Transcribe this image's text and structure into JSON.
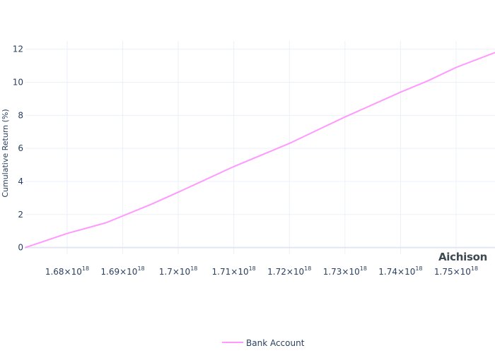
{
  "chart_data": {
    "type": "line",
    "title": "",
    "xlabel": "",
    "ylabel": "Cumulative Return (%)",
    "x_tick_values": [
      1.68e+18,
      1.69e+18,
      1.7e+18,
      1.71e+18,
      1.72e+18,
      1.73e+18,
      1.74e+18,
      1.75e+18
    ],
    "x_ticks": [
      {
        "mantissa": "1.68×10",
        "exp": "18"
      },
      {
        "mantissa": "1.69×10",
        "exp": "18"
      },
      {
        "mantissa": "1.7×10",
        "exp": "18"
      },
      {
        "mantissa": "1.71×10",
        "exp": "18"
      },
      {
        "mantissa": "1.72×10",
        "exp": "18"
      },
      {
        "mantissa": "1.73×10",
        "exp": "18"
      },
      {
        "mantissa": "1.74×10",
        "exp": "18"
      },
      {
        "mantissa": "1.75×10",
        "exp": "18"
      }
    ],
    "y_ticks": [
      "0",
      "2",
      "4",
      "6",
      "8",
      "10",
      "12"
    ],
    "xlim": [
      1.6725e+18,
      1.757e+18
    ],
    "ylim": [
      -0.4,
      12.5
    ],
    "grid": true,
    "legend_position": "bottom-center",
    "series": [
      {
        "name": "Bank Account",
        "color": "#ff99ff",
        "x": [
          1.6725e+18,
          1.68e+18,
          1.687e+18,
          1.695e+18,
          1.7e+18,
          1.71e+18,
          1.72e+18,
          1.725e+18,
          1.73e+18,
          1.74e+18,
          1.745e+18,
          1.75e+18,
          1.757e+18
        ],
        "y": [
          0.0,
          0.85,
          1.5,
          2.6,
          3.35,
          4.9,
          6.3,
          7.1,
          7.9,
          9.4,
          10.1,
          10.9,
          11.8
        ]
      }
    ]
  },
  "watermark": "Aichison"
}
